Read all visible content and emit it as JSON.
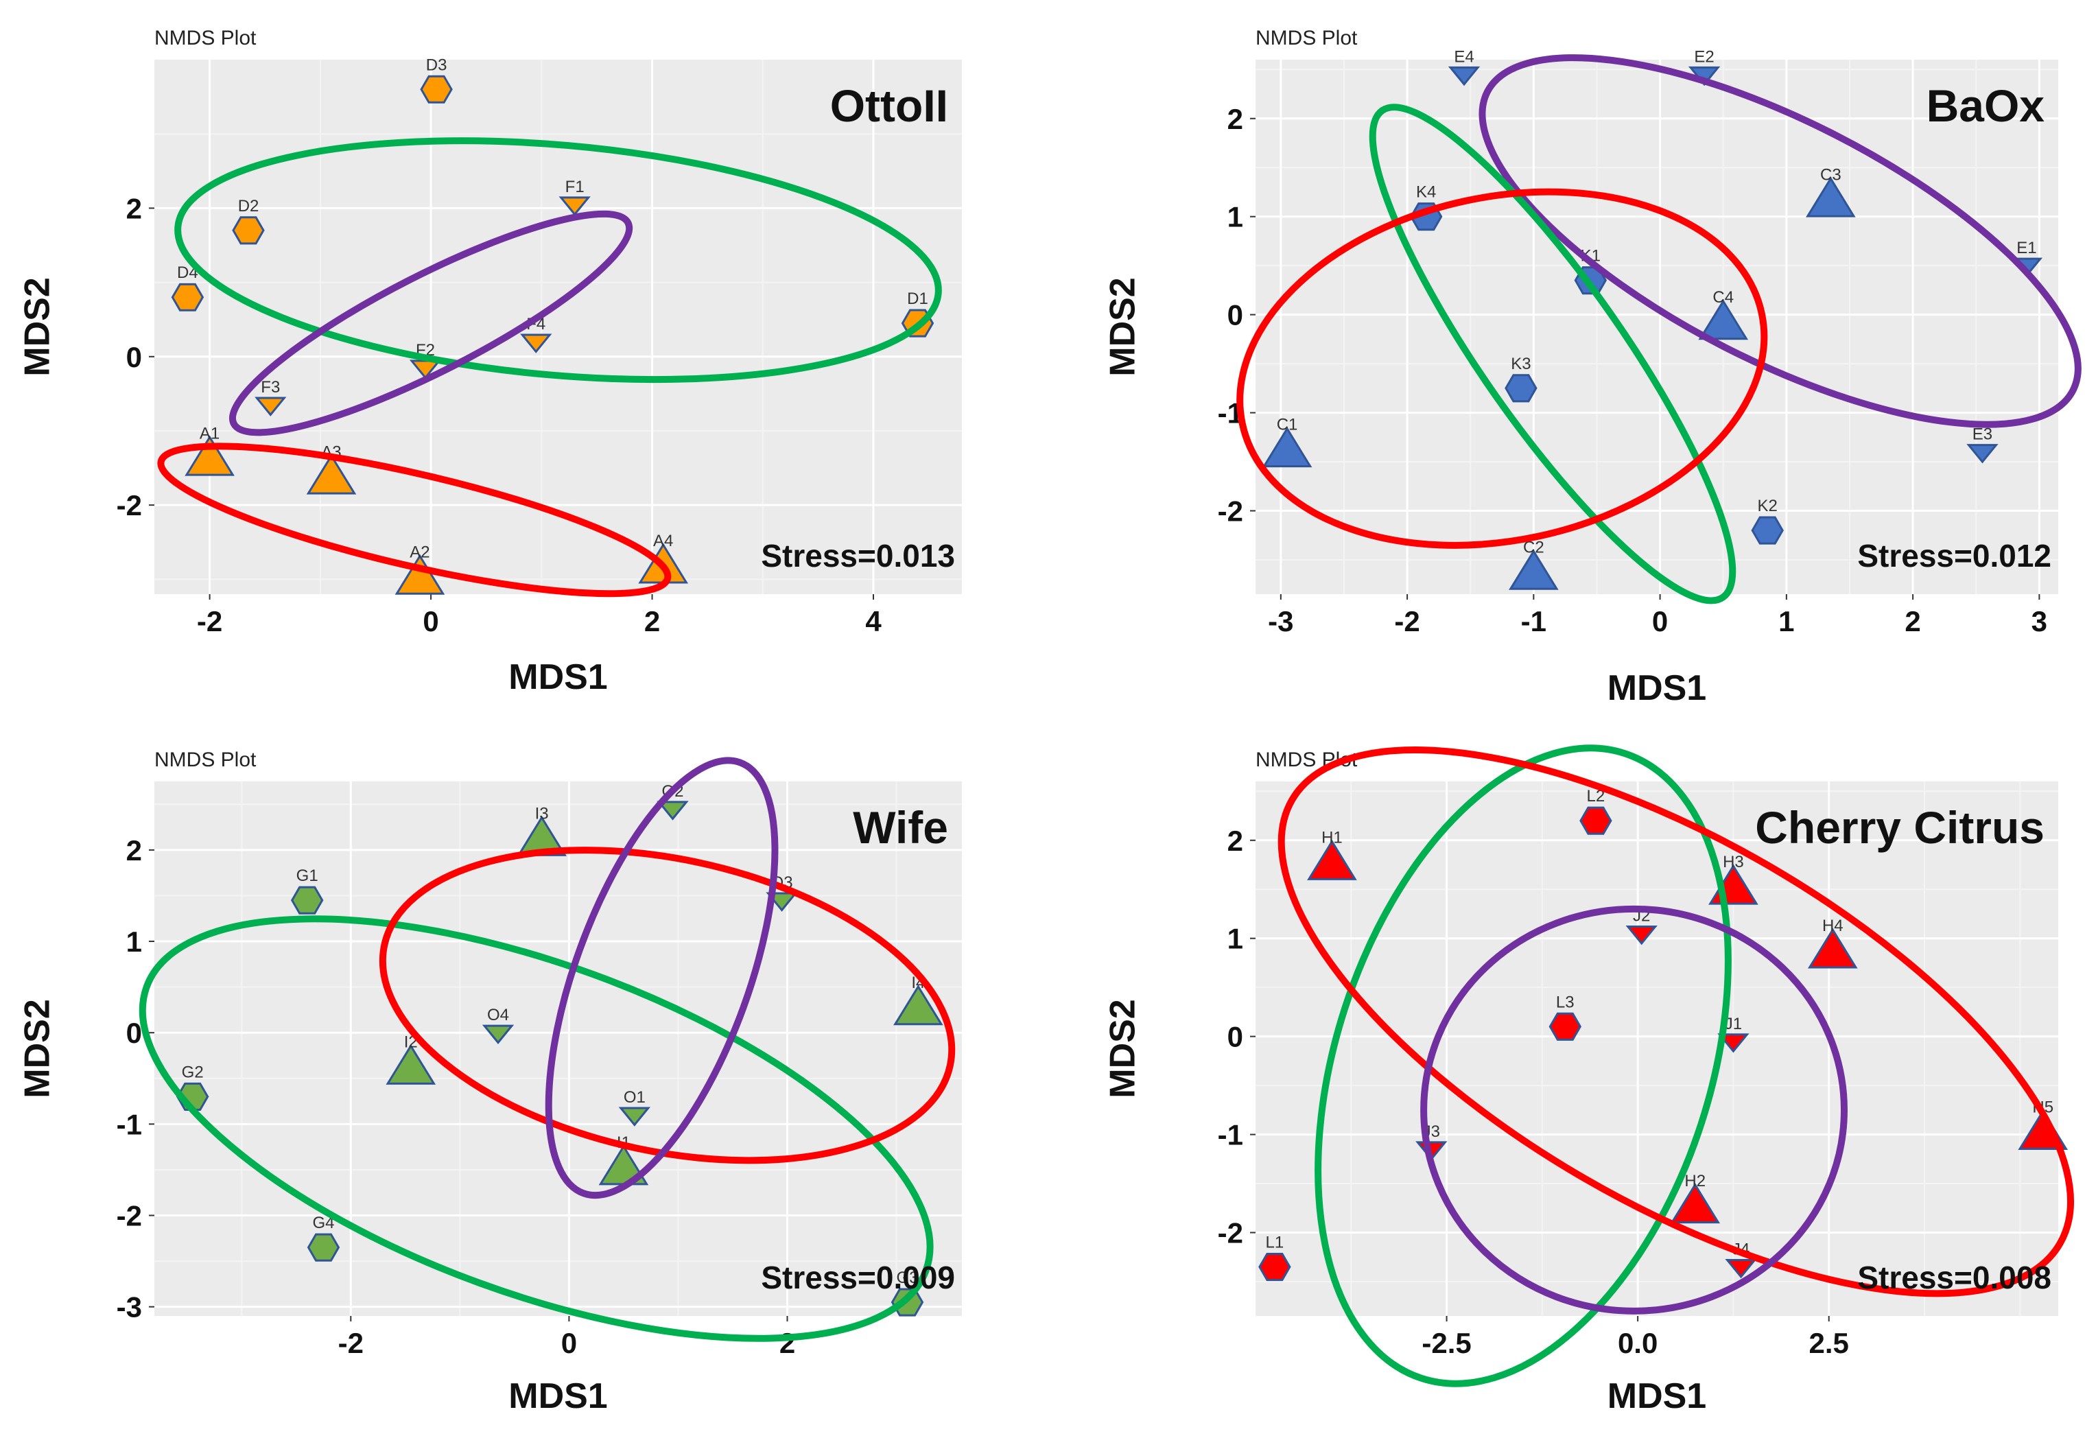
{
  "figure": {
    "colors": {
      "panel_bg": "#ebebeb",
      "grid_major": "#ffffff",
      "grid_minor": "#f4f4f4",
      "point_outline": "#2f5597",
      "green": "#00b050",
      "purple": "#7030a0",
      "red": "#ff0000"
    }
  },
  "chart_data": [
    {
      "type": "scatter",
      "plot_label": "NMDS Plot",
      "title": "OttoII",
      "stress_label": "Stress=0.013",
      "xlabel": "MDS1",
      "ylabel": "MDS2",
      "xlim": [
        -2.5,
        4.8
      ],
      "ylim": [
        -3.2,
        4.0
      ],
      "xticks": [
        -2,
        0,
        2,
        4
      ],
      "yticks": [
        -2,
        0,
        2
      ],
      "xtick_labels": [
        "-2",
        "0",
        "2",
        "4"
      ],
      "ytick_labels": [
        "-2",
        "0",
        "2"
      ],
      "point_color": "#ff9900",
      "points": [
        {
          "label": "D3",
          "shape": "hexagon",
          "x": 0.05,
          "y": 3.6
        },
        {
          "label": "D2",
          "shape": "hexagon",
          "x": -1.65,
          "y": 1.7
        },
        {
          "label": "D4",
          "shape": "hexagon",
          "x": -2.2,
          "y": 0.8
        },
        {
          "label": "D1",
          "shape": "hexagon",
          "x": 4.4,
          "y": 0.45
        },
        {
          "label": "F1",
          "shape": "triangle-down",
          "x": 1.3,
          "y": 2.05
        },
        {
          "label": "F4",
          "shape": "triangle-down",
          "x": 0.95,
          "y": 0.2
        },
        {
          "label": "F2",
          "shape": "triangle-down",
          "x": -0.05,
          "y": -0.15
        },
        {
          "label": "F3",
          "shape": "triangle-down",
          "x": -1.45,
          "y": -0.65
        },
        {
          "label": "A1",
          "shape": "triangle-up",
          "x": -2.0,
          "y": -1.4
        },
        {
          "label": "A3",
          "shape": "triangle-up",
          "x": -0.9,
          "y": -1.65
        },
        {
          "label": "A2",
          "shape": "triangle-up",
          "x": -0.1,
          "y": -3.0
        },
        {
          "label": "A4",
          "shape": "triangle-up",
          "x": 2.1,
          "y": -2.85
        }
      ],
      "ellipses": [
        {
          "color": "green",
          "cx": 1.15,
          "cy": 1.3,
          "rx": 3.45,
          "ry": 1.55,
          "angle": -5
        },
        {
          "color": "purple",
          "cx": 0.0,
          "cy": 0.45,
          "rx": 2.0,
          "ry": 0.65,
          "angle": 27
        },
        {
          "color": "red",
          "cx": -0.15,
          "cy": -2.2,
          "rx": 2.35,
          "ry": 0.62,
          "angle": -13
        }
      ]
    },
    {
      "type": "scatter",
      "plot_label": "NMDS Plot",
      "title": "BaOx",
      "stress_label": "Stress=0.012",
      "xlabel": "MDS1",
      "ylabel": "MDS2",
      "xlim": [
        -3.2,
        3.15
      ],
      "ylim": [
        -2.85,
        2.6
      ],
      "xticks": [
        -3,
        -2,
        -1,
        0,
        1,
        2,
        3
      ],
      "yticks": [
        -2,
        -1,
        0,
        1,
        2
      ],
      "xtick_labels": [
        "-3",
        "-2",
        "-1",
        "0",
        "1",
        "2",
        "3"
      ],
      "ytick_labels": [
        "-2",
        "-1",
        "0",
        "1",
        "2"
      ],
      "point_color": "#4472c4",
      "points": [
        {
          "label": "E4",
          "shape": "triangle-down",
          "x": -1.55,
          "y": 2.45
        },
        {
          "label": "E2",
          "shape": "triangle-down",
          "x": 0.35,
          "y": 2.45
        },
        {
          "label": "E1",
          "shape": "triangle-down",
          "x": 2.9,
          "y": 0.5
        },
        {
          "label": "E3",
          "shape": "triangle-down",
          "x": 2.55,
          "y": -1.4
        },
        {
          "label": "K4",
          "shape": "hexagon",
          "x": -1.85,
          "y": 1.0
        },
        {
          "label": "K1",
          "shape": "hexagon",
          "x": -0.55,
          "y": 0.35
        },
        {
          "label": "K3",
          "shape": "hexagon",
          "x": -1.1,
          "y": -0.75
        },
        {
          "label": "K2",
          "shape": "hexagon",
          "x": 0.85,
          "y": -2.2
        },
        {
          "label": "C3",
          "shape": "triangle-up",
          "x": 1.35,
          "y": 1.15
        },
        {
          "label": "C4",
          "shape": "triangle-up",
          "x": 0.5,
          "y": -0.1
        },
        {
          "label": "C1",
          "shape": "triangle-up",
          "x": -2.95,
          "y": -1.4
        },
        {
          "label": "C2",
          "shape": "triangle-up",
          "x": -1.0,
          "y": -2.65
        }
      ],
      "ellipses": [
        {
          "color": "purple",
          "cx": 0.95,
          "cy": 0.75,
          "rx": 2.6,
          "ry": 1.22,
          "angle": -27
        },
        {
          "color": "green",
          "cx": -0.85,
          "cy": -0.4,
          "rx": 2.35,
          "ry": 0.72,
          "angle": -55
        },
        {
          "color": "red",
          "cx": -1.25,
          "cy": -0.55,
          "rx": 2.1,
          "ry": 1.75,
          "angle": 12
        }
      ]
    },
    {
      "type": "scatter",
      "plot_label": "NMDS Plot",
      "title": "Wife",
      "stress_label": "Stress=0.009",
      "xlabel": "MDS1",
      "ylabel": "MDS2",
      "xlim": [
        -3.8,
        3.6
      ],
      "ylim": [
        -3.1,
        2.75
      ],
      "xticks": [
        -2,
        0,
        2
      ],
      "yticks": [
        -3,
        -2,
        -1,
        0,
        1,
        2
      ],
      "xtick_labels": [
        "-2",
        "0",
        "2"
      ],
      "ytick_labels": [
        "-3",
        "-2",
        "-1",
        "0",
        "1",
        "2"
      ],
      "point_color": "#70ad47",
      "points": [
        {
          "label": "G1",
          "shape": "hexagon",
          "x": -2.4,
          "y": 1.45
        },
        {
          "label": "G2",
          "shape": "hexagon",
          "x": -3.45,
          "y": -0.7
        },
        {
          "label": "G4",
          "shape": "hexagon",
          "x": -2.25,
          "y": -2.35
        },
        {
          "label": "G3",
          "shape": "hexagon",
          "x": 3.1,
          "y": -2.95
        },
        {
          "label": "I3",
          "shape": "triangle-up",
          "x": -0.25,
          "y": 2.1
        },
        {
          "label": "I2",
          "shape": "triangle-up",
          "x": -1.45,
          "y": -0.4
        },
        {
          "label": "I1",
          "shape": "triangle-up",
          "x": 0.5,
          "y": -1.5
        },
        {
          "label": "I4",
          "shape": "triangle-up",
          "x": 3.2,
          "y": 0.25
        },
        {
          "label": "O2",
          "shape": "triangle-down",
          "x": 0.95,
          "y": 2.45
        },
        {
          "label": "O3",
          "shape": "triangle-down",
          "x": 1.95,
          "y": 1.45
        },
        {
          "label": "O4",
          "shape": "triangle-down",
          "x": -0.65,
          "y": 0.0
        },
        {
          "label": "O1",
          "shape": "triangle-down",
          "x": 0.6,
          "y": -0.9
        }
      ],
      "ellipses": [
        {
          "color": "green",
          "cx": -0.3,
          "cy": -1.05,
          "rx": 3.8,
          "ry": 1.8,
          "angle": -20
        },
        {
          "color": "red",
          "cx": 0.9,
          "cy": 0.3,
          "rx": 2.65,
          "ry": 1.6,
          "angle": -12
        },
        {
          "color": "purple",
          "cx": 0.85,
          "cy": 0.6,
          "rx": 2.1,
          "ry": 0.95,
          "angle": 70
        }
      ]
    },
    {
      "type": "scatter",
      "plot_label": "NMDS Plot",
      "title": "Cherry Citrus",
      "stress_label": "Stress=0.008",
      "xlabel": "MDS1",
      "ylabel": "MDS2",
      "xlim": [
        -5.0,
        5.5
      ],
      "ylim": [
        -2.85,
        2.6
      ],
      "xticks": [
        -2.5,
        0.0,
        2.5
      ],
      "yticks": [
        -2,
        -1,
        0,
        1,
        2
      ],
      "xtick_labels": [
        "-2.5",
        "0.0",
        "2.5"
      ],
      "ytick_labels": [
        "-2",
        "-1",
        "0",
        "1",
        "2"
      ],
      "point_color": "#ff0000",
      "points": [
        {
          "label": "L2",
          "shape": "hexagon",
          "x": -0.55,
          "y": 2.2
        },
        {
          "label": "L3",
          "shape": "hexagon",
          "x": -0.95,
          "y": 0.1
        },
        {
          "label": "L1",
          "shape": "hexagon",
          "x": -4.75,
          "y": -2.35
        },
        {
          "label": "H1",
          "shape": "triangle-up",
          "x": -4.0,
          "y": 1.75
        },
        {
          "label": "H3",
          "shape": "triangle-up",
          "x": 1.25,
          "y": 1.5
        },
        {
          "label": "H4",
          "shape": "triangle-up",
          "x": 2.55,
          "y": 0.85
        },
        {
          "label": "H5",
          "shape": "triangle-up",
          "x": 5.3,
          "y": -1.0
        },
        {
          "label": "H2",
          "shape": "triangle-up",
          "x": 0.75,
          "y": -1.75
        },
        {
          "label": "J2",
          "shape": "triangle-down",
          "x": 0.05,
          "y": 1.05
        },
        {
          "label": "J1",
          "shape": "triangle-down",
          "x": 1.25,
          "y": -0.05
        },
        {
          "label": "J3",
          "shape": "triangle-down",
          "x": -2.7,
          "y": -1.15
        },
        {
          "label": "J4",
          "shape": "triangle-down",
          "x": 1.35,
          "y": -2.35
        }
      ],
      "ellipses": [
        {
          "color": "green",
          "cx": -1.5,
          "cy": -0.3,
          "rx": 2.45,
          "ry": 3.35,
          "angle": -18
        },
        {
          "color": "red",
          "cx": 0.5,
          "cy": 0.15,
          "rx": 5.8,
          "ry": 1.85,
          "angle": -30
        },
        {
          "color": "purple",
          "cx": -0.05,
          "cy": -0.75,
          "rx": 2.75,
          "ry": 2.05,
          "angle": 0
        }
      ]
    }
  ]
}
